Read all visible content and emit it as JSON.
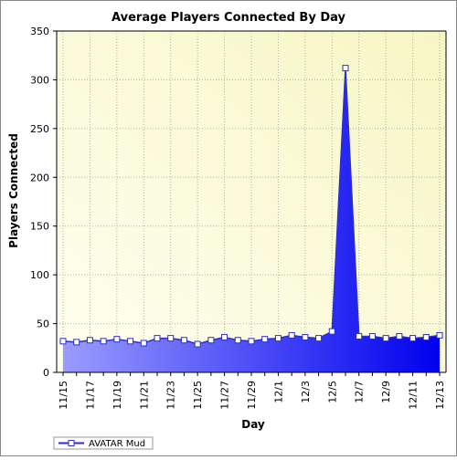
{
  "chart_data": {
    "type": "area",
    "title": "Average Players Connected By Day",
    "xlabel": "Day",
    "ylabel": "Players Connected",
    "ylim": [
      0,
      350
    ],
    "yticks": [
      0,
      50,
      100,
      150,
      200,
      250,
      300,
      350
    ],
    "categories": [
      "11/15",
      "11/16",
      "11/17",
      "11/18",
      "11/19",
      "11/20",
      "11/21",
      "11/22",
      "11/23",
      "11/24",
      "11/25",
      "11/26",
      "11/27",
      "11/28",
      "11/29",
      "11/30",
      "12/1",
      "12/2",
      "12/3",
      "12/4",
      "12/5",
      "12/6",
      "12/7",
      "12/8",
      "12/9",
      "12/10",
      "12/11",
      "12/12",
      "12/13"
    ],
    "x_tick_labels": [
      "11/15",
      "11/17",
      "11/19",
      "11/21",
      "11/23",
      "11/25",
      "11/27",
      "11/29",
      "12/1",
      "12/3",
      "12/5",
      "12/7",
      "12/9",
      "12/11",
      "12/13"
    ],
    "series": [
      {
        "name": "AVATAR Mud",
        "values": [
          32,
          31,
          33,
          32,
          34,
          32,
          30,
          35,
          35,
          33,
          29,
          33,
          36,
          33,
          32,
          34,
          35,
          38,
          36,
          35,
          42,
          312,
          37,
          37,
          35,
          37,
          35,
          36,
          38
        ]
      }
    ],
    "grid": true,
    "legend_position": "bottom-left",
    "colors": {
      "plot_bg_light": "#fffff0",
      "plot_bg_yellow": "#f6f6c4",
      "area_light": "#9a9cff",
      "area_dark": "#0000ee",
      "line": "#2e2ec8",
      "marker_fill": "#ffffff",
      "grid": "#b0b0b0"
    }
  }
}
